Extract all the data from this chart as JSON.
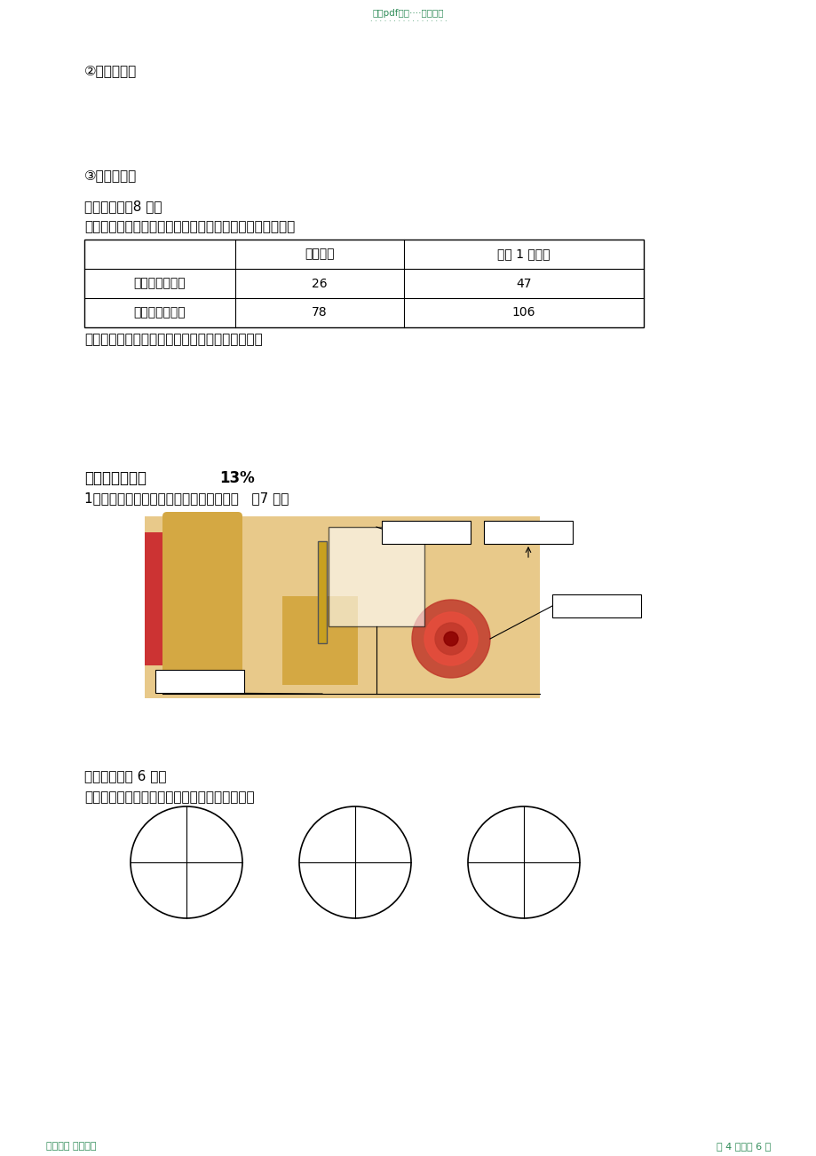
{
  "bg_color": "#ffffff",
  "header_text": "精品pdf资料····欢迎下载",
  "header_dots": "· · · · · · · · · · · · · · · · ·",
  "section2_label": "②实验过程：",
  "section3_label": "③实验结论：",
  "section7_title": "七、实践题（8 分）",
  "section7_desc": "下面是李涛在学习《运动起来会怎样》一课时所作的记录。",
  "table_headers": [
    "",
    "平静状态",
    "运动 1 分钟后"
  ],
  "table_row1": [
    "每分钟呼吸次数",
    "26",
    "47"
  ],
  "table_row2": [
    "每分钟心跳次数",
    "78",
    "106"
  ],
  "table_note": "请你用所学的知识对测得的数据作出合理的解释。",
  "section5_title": "五、我会看图：",
  "section5_percent": "13%",
  "section5_q1": "1、观察耳的结构图，填上各部分的名称。   （7 分）",
  "ear_label": "（          ）",
  "section5b_title": "五、画图题（ 6 分）",
  "section5b_desc": "请在下面圆圈中按照天气情况画出云量的分布。",
  "footer_left": "欢迎下载 名师归纳",
  "footer_right": "第 4 页，共 6 页",
  "footer_color": "#2e8b57",
  "header_color": "#2e8b57"
}
